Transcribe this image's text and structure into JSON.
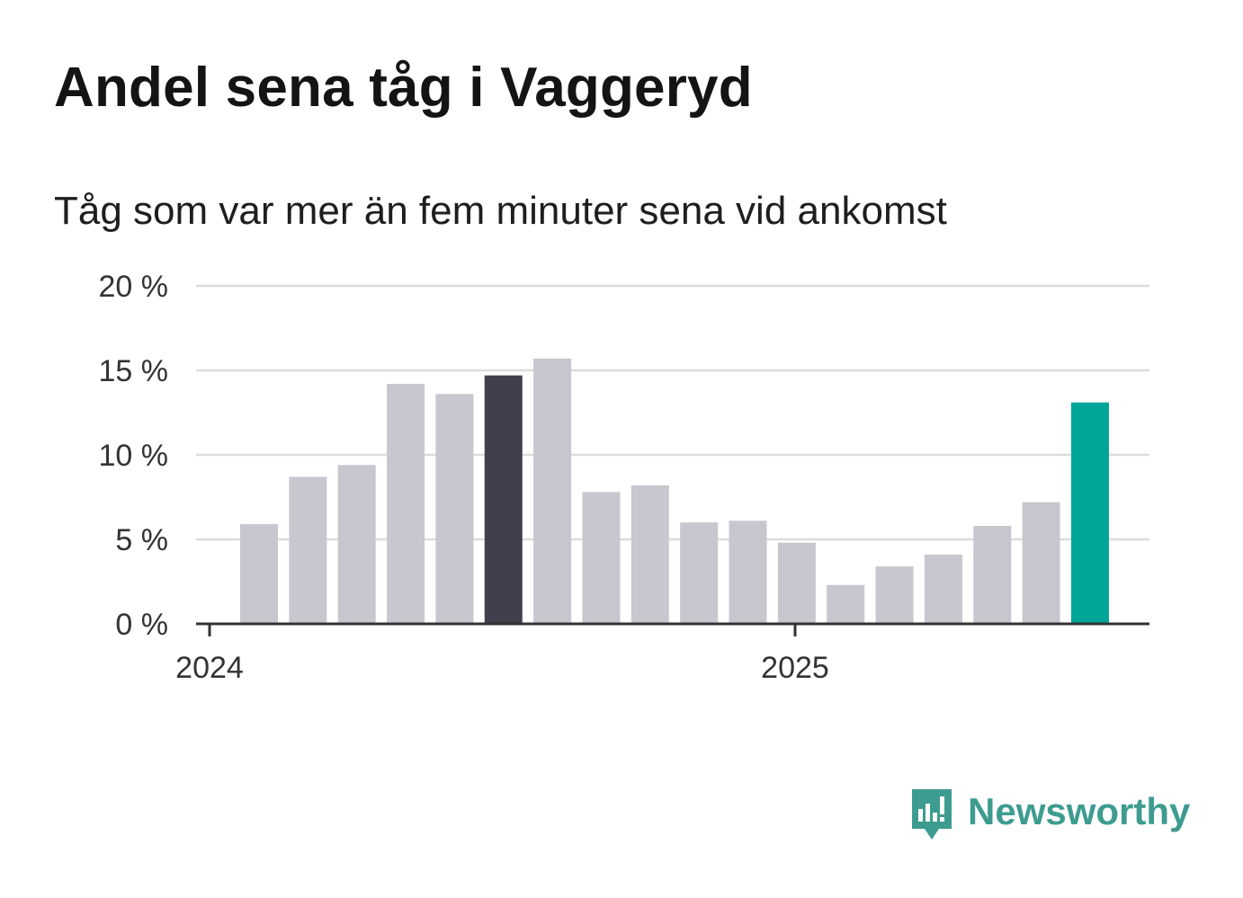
{
  "title": "Andel sena tåg i Vaggeryd",
  "subtitle": "Tåg som var mer än fem minuter sena vid ankomst",
  "logo": {
    "text": "Newsworthy",
    "icon": "newsworthy-logo-icon",
    "color": "#3d9c8f"
  },
  "colors": {
    "bar_default": "#c8c7cf",
    "bar_highlight": "#403f4c",
    "bar_latest": "#00a59a",
    "grid": "#dcdcdc",
    "axis": "#333333"
  },
  "chart_data": {
    "type": "bar",
    "title": "Andel sena tåg i Vaggeryd",
    "subtitle": "Tåg som var mer än fem minuter sena vid ankomst",
    "xlabel": "",
    "ylabel": "",
    "ylim": [
      0,
      20
    ],
    "y_ticks": [
      0,
      5,
      10,
      15,
      20
    ],
    "y_tick_labels": [
      "0 %",
      "5 %",
      "10 %",
      "15 %",
      "20 %"
    ],
    "x_tick_labels": [
      "2024",
      "2025"
    ],
    "x_ticks": [
      "2024-01",
      "2025-01"
    ],
    "categories": [
      "2024-02",
      "2024-03",
      "2024-04",
      "2024-05",
      "2024-06",
      "2024-07",
      "2024-08",
      "2024-09",
      "2024-10",
      "2024-11",
      "2024-12",
      "2025-01",
      "2025-02",
      "2025-03",
      "2025-04",
      "2025-05",
      "2025-06",
      "2025-07"
    ],
    "values": [
      5.9,
      8.7,
      9.4,
      14.2,
      13.6,
      14.7,
      15.7,
      7.8,
      8.2,
      6.0,
      6.1,
      4.8,
      2.3,
      3.4,
      4.1,
      5.8,
      7.2,
      13.1
    ],
    "highlight_index": 5,
    "latest_index": 17,
    "grid": true,
    "legend": "none"
  }
}
